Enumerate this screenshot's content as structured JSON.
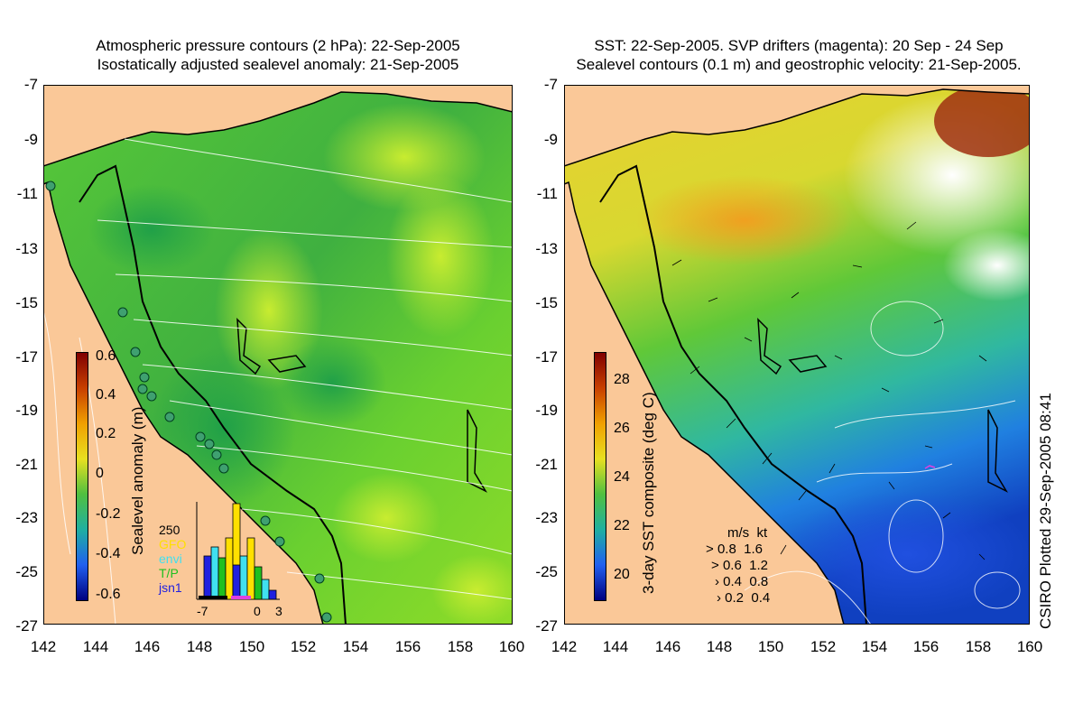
{
  "left_panel": {
    "title_line1": "Atmospheric pressure contours (2 hPa): 22-Sep-2005",
    "title_line2": "Isostatically adjusted sealevel anomaly: 21-Sep-2005",
    "colorbar_label": "Sealevel anomaly (m)",
    "colorbar_ticks": [
      "0.6",
      "0.4",
      "0.2",
      "0",
      "-0.2",
      "-0.4",
      "-0.6"
    ],
    "inset_legend": {
      "max": "250",
      "series": [
        "GFO",
        "envi",
        "T/P",
        "jsn1"
      ],
      "series_colors": [
        "#ffe000",
        "#40e0f0",
        "#20c020",
        "#2020e0"
      ]
    },
    "inset_x_ticks": [
      "-7",
      "0",
      "3"
    ]
  },
  "right_panel": {
    "title_line1": "SST: 22-Sep-2005. SVP drifters (magenta): 20 Sep - 24 Sep",
    "title_line2": "Sealevel contours (0.1 m) and geostrophic velocity: 21-Sep-2005.",
    "colorbar_label": "3-day SST composite (deg C)",
    "colorbar_ticks": [
      "28",
      "26",
      "24",
      "22",
      "20"
    ],
    "velocity_legend": {
      "header_ms": "m/s",
      "header_kt": "kt",
      "rows": [
        [
          "0.8",
          "1.6"
        ],
        [
          "0.6",
          "1.2"
        ],
        [
          "0.4",
          "0.8"
        ],
        [
          "0.2",
          "0.4"
        ]
      ]
    },
    "credit": "CSIRO Plotted 29-Sep-2005 08:41"
  },
  "axes": {
    "lat_ticks": [
      "-7",
      "-9",
      "-11",
      "-13",
      "-15",
      "-17",
      "-19",
      "-21",
      "-23",
      "-25",
      "-27"
    ],
    "lon_ticks": [
      "142",
      "144",
      "146",
      "148",
      "150",
      "152",
      "154",
      "156",
      "158",
      "160"
    ]
  },
  "colors": {
    "land": "#fac898",
    "sea_green": "#40c030",
    "sst_warm": "#f0c020",
    "sst_cool": "#2050e0",
    "cloud": "#ffffff"
  }
}
